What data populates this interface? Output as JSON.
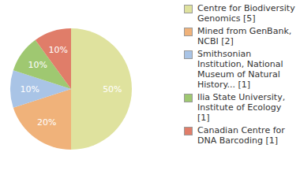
{
  "chart_data": {
    "type": "pie",
    "categories": [
      "Centre for Biodiversity Genomics [5]",
      "Mined from GenBank, NCBI [2]",
      "Smithsonian Institution, National Museum of Natural History... [1]",
      "Ilia State University, Institute of Ecology [1]",
      "Canadian Centre for DNA Barcoding [1]"
    ],
    "values": [
      50,
      20,
      10,
      10,
      10
    ],
    "value_labels": [
      "50%",
      "20%",
      "10%",
      "10%",
      "10%"
    ],
    "colors": [
      "#dfe29e",
      "#f0b27a",
      "#a9c4e6",
      "#9fc871",
      "#e07d69"
    ],
    "data_labels": true,
    "legend": "right"
  }
}
